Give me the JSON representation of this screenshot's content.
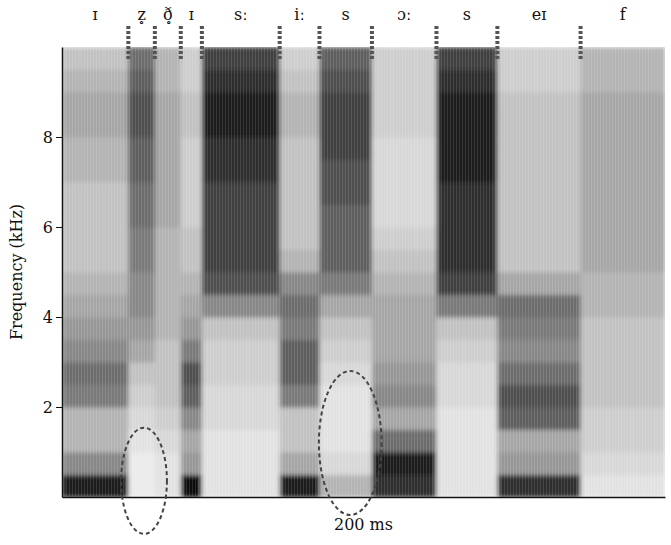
{
  "chart_data": {
    "type": "spectrogram",
    "xlabel": "200 ms",
    "ylabel": "Frequency (kHz)",
    "xlim": [
      0,
      1000
    ],
    "ylim": [
      0,
      10
    ],
    "yticks": [
      2,
      4,
      6,
      8
    ],
    "tick_labels": "y",
    "zlim": [
      0,
      1
    ],
    "segment_labels": [
      "ɪ",
      "z̥",
      "ð̥",
      "ɪ",
      "sː",
      "iː",
      "s",
      "ɔː",
      "s",
      "eɪ",
      "f"
    ],
    "time_edges": [
      0,
      110,
      154,
      197,
      232,
      361,
      427,
      514,
      621,
      722,
      860,
      1000
    ],
    "freq_edges": [
      0,
      0.5,
      1,
      1.5,
      2,
      2.5,
      3,
      3.5,
      4,
      4.5,
      5,
      5.5,
      6,
      6.5,
      7,
      7.5,
      8,
      8.5,
      9,
      9.5,
      10
    ],
    "cells": [
      [
        0.9,
        0.55,
        0.4,
        0.4,
        0.6,
        0.65,
        0.55,
        0.5,
        0.45,
        0.4,
        0.35,
        0.35,
        0.35,
        0.35,
        0.4,
        0.4,
        0.45,
        0.45,
        0.4,
        0.35
      ],
      [
        0.15,
        0.15,
        0.2,
        0.25,
        0.3,
        0.35,
        0.45,
        0.5,
        0.55,
        0.55,
        0.6,
        0.6,
        0.65,
        0.65,
        0.7,
        0.7,
        0.75,
        0.75,
        0.7,
        0.65
      ],
      [
        0.2,
        0.2,
        0.25,
        0.3,
        0.35,
        0.35,
        0.35,
        0.4,
        0.4,
        0.4,
        0.4,
        0.4,
        0.45,
        0.45,
        0.45,
        0.45,
        0.45,
        0.45,
        0.4,
        0.4
      ],
      [
        0.95,
        0.5,
        0.45,
        0.55,
        0.7,
        0.75,
        0.6,
        0.5,
        0.45,
        0.4,
        0.35,
        0.35,
        0.3,
        0.3,
        0.3,
        0.3,
        0.35,
        0.35,
        0.3,
        0.3
      ],
      [
        0.2,
        0.2,
        0.2,
        0.25,
        0.25,
        0.3,
        0.3,
        0.35,
        0.55,
        0.75,
        0.8,
        0.8,
        0.8,
        0.8,
        0.85,
        0.85,
        0.9,
        0.9,
        0.85,
        0.8
      ],
      [
        0.9,
        0.45,
        0.35,
        0.35,
        0.6,
        0.7,
        0.7,
        0.6,
        0.65,
        0.55,
        0.4,
        0.35,
        0.35,
        0.35,
        0.35,
        0.35,
        0.4,
        0.4,
        0.35,
        0.3
      ],
      [
        0.4,
        0.25,
        0.2,
        0.2,
        0.2,
        0.25,
        0.3,
        0.35,
        0.45,
        0.6,
        0.7,
        0.7,
        0.7,
        0.75,
        0.75,
        0.8,
        0.8,
        0.8,
        0.75,
        0.7
      ],
      [
        0.85,
        0.9,
        0.65,
        0.45,
        0.55,
        0.5,
        0.45,
        0.45,
        0.45,
        0.4,
        0.35,
        0.3,
        0.25,
        0.25,
        0.25,
        0.25,
        0.3,
        0.3,
        0.3,
        0.3
      ],
      [
        0.2,
        0.2,
        0.2,
        0.2,
        0.25,
        0.25,
        0.3,
        0.35,
        0.6,
        0.8,
        0.85,
        0.85,
        0.85,
        0.85,
        0.9,
        0.9,
        0.9,
        0.9,
        0.85,
        0.8
      ],
      [
        0.85,
        0.5,
        0.45,
        0.7,
        0.75,
        0.65,
        0.55,
        0.6,
        0.65,
        0.45,
        0.35,
        0.35,
        0.35,
        0.35,
        0.35,
        0.35,
        0.35,
        0.35,
        0.3,
        0.3
      ],
      [
        0.2,
        0.25,
        0.3,
        0.3,
        0.35,
        0.35,
        0.35,
        0.35,
        0.4,
        0.4,
        0.45,
        0.45,
        0.45,
        0.45,
        0.45,
        0.45,
        0.45,
        0.45,
        0.4,
        0.4
      ]
    ],
    "highlights": [
      {
        "x": 136,
        "y": 0.36,
        "rx": 38,
        "ry": 1.18
      },
      {
        "x": 478,
        "y": 1.2,
        "rx": 52,
        "ry": 1.6
      }
    ]
  }
}
